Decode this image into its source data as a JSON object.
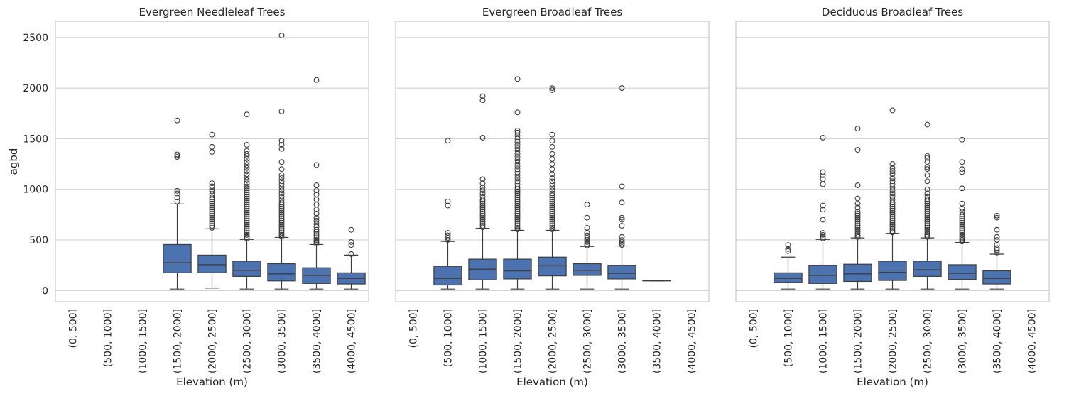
{
  "chart_data": [
    {
      "type": "box",
      "title": "Evergreen Needleleaf Trees",
      "xlabel": "Elevation (m)",
      "ylabel": "agbd",
      "ylim": [
        -110,
        2660
      ],
      "yticks": [
        0,
        500,
        1000,
        1500,
        2000,
        2500
      ],
      "grid": true,
      "box_color": "#4c72b0",
      "line_color": "#3d3d3d",
      "categories": [
        "(0, 500]",
        "(500, 1000]",
        "(1000, 1500]",
        "(1500, 2000]",
        "(2000, 2500]",
        "(2500, 3000]",
        "(3000, 3500]",
        "(3500, 4000]",
        "(4000, 4500]"
      ],
      "boxes": [
        null,
        null,
        null,
        {
          "q1": 175,
          "median": 275,
          "q3": 455,
          "whislo": 15,
          "whishi": 855,
          "fliers": [
            880,
            920,
            960,
            985,
            1320,
            1335,
            1345,
            1680
          ]
        },
        {
          "q1": 175,
          "median": 255,
          "q3": 350,
          "whislo": 25,
          "whishi": 610,
          "fliers": [
            620,
            640,
            660,
            680,
            700,
            720,
            740,
            760,
            780,
            800,
            820,
            840,
            860,
            880,
            900,
            920,
            950,
            980,
            1000,
            1030,
            1060,
            1370,
            1420,
            1540
          ]
        },
        {
          "q1": 140,
          "median": 200,
          "q3": 290,
          "whislo": 15,
          "whishi": 505,
          "fliers": [
            515,
            530,
            550,
            570,
            590,
            610,
            630,
            650,
            670,
            690,
            710,
            730,
            750,
            770,
            790,
            810,
            830,
            850,
            870,
            890,
            910,
            930,
            950,
            970,
            990,
            1010,
            1030,
            1060,
            1090,
            1120,
            1150,
            1180,
            1210,
            1240,
            1270,
            1300,
            1330,
            1350,
            1380,
            1440,
            1740
          ]
        },
        {
          "q1": 95,
          "median": 165,
          "q3": 265,
          "whislo": 15,
          "whishi": 525,
          "fliers": [
            535,
            550,
            570,
            590,
            610,
            630,
            650,
            670,
            690,
            710,
            730,
            750,
            770,
            790,
            810,
            830,
            850,
            870,
            900,
            930,
            960,
            990,
            1020,
            1050,
            1080,
            1110,
            1140,
            1200,
            1270,
            1400,
            1440,
            1480,
            1770,
            2520
          ]
        },
        {
          "q1": 70,
          "median": 150,
          "q3": 225,
          "whislo": 15,
          "whishi": 455,
          "fliers": [
            465,
            480,
            500,
            520,
            540,
            560,
            580,
            600,
            630,
            660,
            690,
            720,
            760,
            800,
            850,
            900,
            950,
            990,
            1040,
            1240,
            2080
          ]
        },
        {
          "q1": 65,
          "median": 120,
          "q3": 175,
          "whislo": 15,
          "whishi": 350,
          "fliers": [
            360,
            450,
            480,
            600
          ]
        }
      ]
    },
    {
      "type": "box",
      "title": "Evergreen Broadleaf Trees",
      "xlabel": "Elevation (m)",
      "ylabel": "",
      "ylim": [
        -110,
        2660
      ],
      "yticks": [
        0,
        500,
        1000,
        1500,
        2000,
        2500
      ],
      "grid": true,
      "box_color": "#4c72b0",
      "line_color": "#3d3d3d",
      "categories": [
        "(0, 500]",
        "(500, 1000]",
        "(1000, 1500]",
        "(1500, 2000]",
        "(2000, 2500]",
        "(2500, 3000]",
        "(3000, 3500]",
        "(3500, 4000]",
        "(4000, 4500]"
      ],
      "boxes": [
        null,
        {
          "q1": 55,
          "median": 120,
          "q3": 240,
          "whislo": 15,
          "whishi": 485,
          "fliers": [
            500,
            520,
            545,
            570,
            840,
            880,
            1480
          ]
        },
        {
          "q1": 105,
          "median": 210,
          "q3": 310,
          "whislo": 15,
          "whishi": 615,
          "fliers": [
            625,
            640,
            660,
            680,
            700,
            720,
            740,
            760,
            780,
            800,
            820,
            840,
            860,
            880,
            900,
            930,
            960,
            990,
            1020,
            1060,
            1100,
            1510,
            1880,
            1920
          ]
        },
        {
          "q1": 115,
          "median": 195,
          "q3": 310,
          "whislo": 15,
          "whishi": 595,
          "fliers": [
            605,
            620,
            640,
            660,
            680,
            700,
            720,
            740,
            760,
            780,
            800,
            820,
            840,
            860,
            880,
            900,
            920,
            940,
            960,
            980,
            1000,
            1020,
            1050,
            1080,
            1110,
            1140,
            1170,
            1200,
            1230,
            1260,
            1290,
            1320,
            1350,
            1380,
            1410,
            1440,
            1470,
            1500,
            1530,
            1560,
            1580,
            1760,
            2090
          ]
        },
        {
          "q1": 145,
          "median": 245,
          "q3": 330,
          "whislo": 15,
          "whishi": 595,
          "fliers": [
            605,
            620,
            640,
            660,
            680,
            700,
            720,
            740,
            760,
            780,
            800,
            820,
            840,
            860,
            880,
            900,
            920,
            940,
            960,
            990,
            1020,
            1050,
            1080,
            1110,
            1150,
            1200,
            1250,
            1300,
            1350,
            1420,
            1480,
            1540,
            1980,
            2000
          ]
        },
        {
          "q1": 150,
          "median": 200,
          "q3": 265,
          "whislo": 15,
          "whishi": 435,
          "fliers": [
            445,
            460,
            480,
            500,
            520,
            545,
            570,
            620,
            720,
            850
          ]
        },
        {
          "q1": 115,
          "median": 170,
          "q3": 250,
          "whislo": 15,
          "whishi": 440,
          "fliers": [
            450,
            465,
            480,
            500,
            530,
            640,
            700,
            720,
            870,
            1030,
            2000
          ]
        },
        {
          "q1": 95,
          "median": 100,
          "q3": 102,
          "whislo": 95,
          "whishi": 102,
          "fliers": []
        },
        null
      ]
    },
    {
      "type": "box",
      "title": "Deciduous Broadleaf Trees",
      "xlabel": "Elevation (m)",
      "ylabel": "",
      "ylim": [
        -110,
        2660
      ],
      "yticks": [
        0,
        500,
        1000,
        1500,
        2000,
        2500
      ],
      "grid": true,
      "box_color": "#4c72b0",
      "line_color": "#3d3d3d",
      "categories": [
        "(0, 500]",
        "(500, 1000]",
        "(1000, 1500]",
        "(1500, 2000]",
        "(2000, 2500]",
        "(2500, 3000]",
        "(3000, 3500]",
        "(3500, 4000]",
        "(4000, 4500]"
      ],
      "boxes": [
        null,
        {
          "q1": 80,
          "median": 120,
          "q3": 175,
          "whislo": 15,
          "whishi": 330,
          "fliers": [
            390,
            410,
            450
          ]
        },
        {
          "q1": 70,
          "median": 150,
          "q3": 250,
          "whislo": 15,
          "whishi": 505,
          "fliers": [
            515,
            530,
            550,
            570,
            700,
            800,
            840,
            1050,
            1100,
            1140,
            1170,
            1510
          ]
        },
        {
          "q1": 90,
          "median": 165,
          "q3": 260,
          "whislo": 15,
          "whishi": 520,
          "fliers": [
            530,
            545,
            560,
            580,
            600,
            620,
            640,
            660,
            680,
            700,
            720,
            740,
            760,
            780,
            820,
            860,
            910,
            1040,
            1390,
            1600
          ]
        },
        {
          "q1": 100,
          "median": 180,
          "q3": 290,
          "whislo": 15,
          "whishi": 565,
          "fliers": [
            575,
            590,
            610,
            630,
            650,
            670,
            690,
            710,
            730,
            750,
            770,
            790,
            810,
            830,
            850,
            870,
            900,
            930,
            960,
            990,
            1020,
            1050,
            1080,
            1110,
            1150,
            1180,
            1210,
            1250,
            1780
          ]
        },
        {
          "q1": 140,
          "median": 205,
          "q3": 290,
          "whislo": 15,
          "whishi": 520,
          "fliers": [
            530,
            545,
            560,
            580,
            600,
            620,
            640,
            660,
            680,
            700,
            720,
            740,
            760,
            780,
            800,
            820,
            840,
            860,
            880,
            900,
            930,
            960,
            1000,
            1080,
            1140,
            1200,
            1220,
            1270,
            1310,
            1330,
            1640
          ]
        },
        {
          "q1": 110,
          "median": 170,
          "q3": 255,
          "whislo": 15,
          "whishi": 475,
          "fliers": [
            485,
            500,
            515,
            530,
            550,
            570,
            590,
            610,
            630,
            650,
            670,
            690,
            710,
            730,
            750,
            780,
            810,
            860,
            1010,
            1170,
            1200,
            1270,
            1490
          ]
        },
        {
          "q1": 65,
          "median": 120,
          "q3": 195,
          "whislo": 15,
          "whishi": 360,
          "fliers": [
            375,
            400,
            420,
            450,
            500,
            530,
            600,
            720,
            740
          ]
        },
        null
      ]
    }
  ]
}
